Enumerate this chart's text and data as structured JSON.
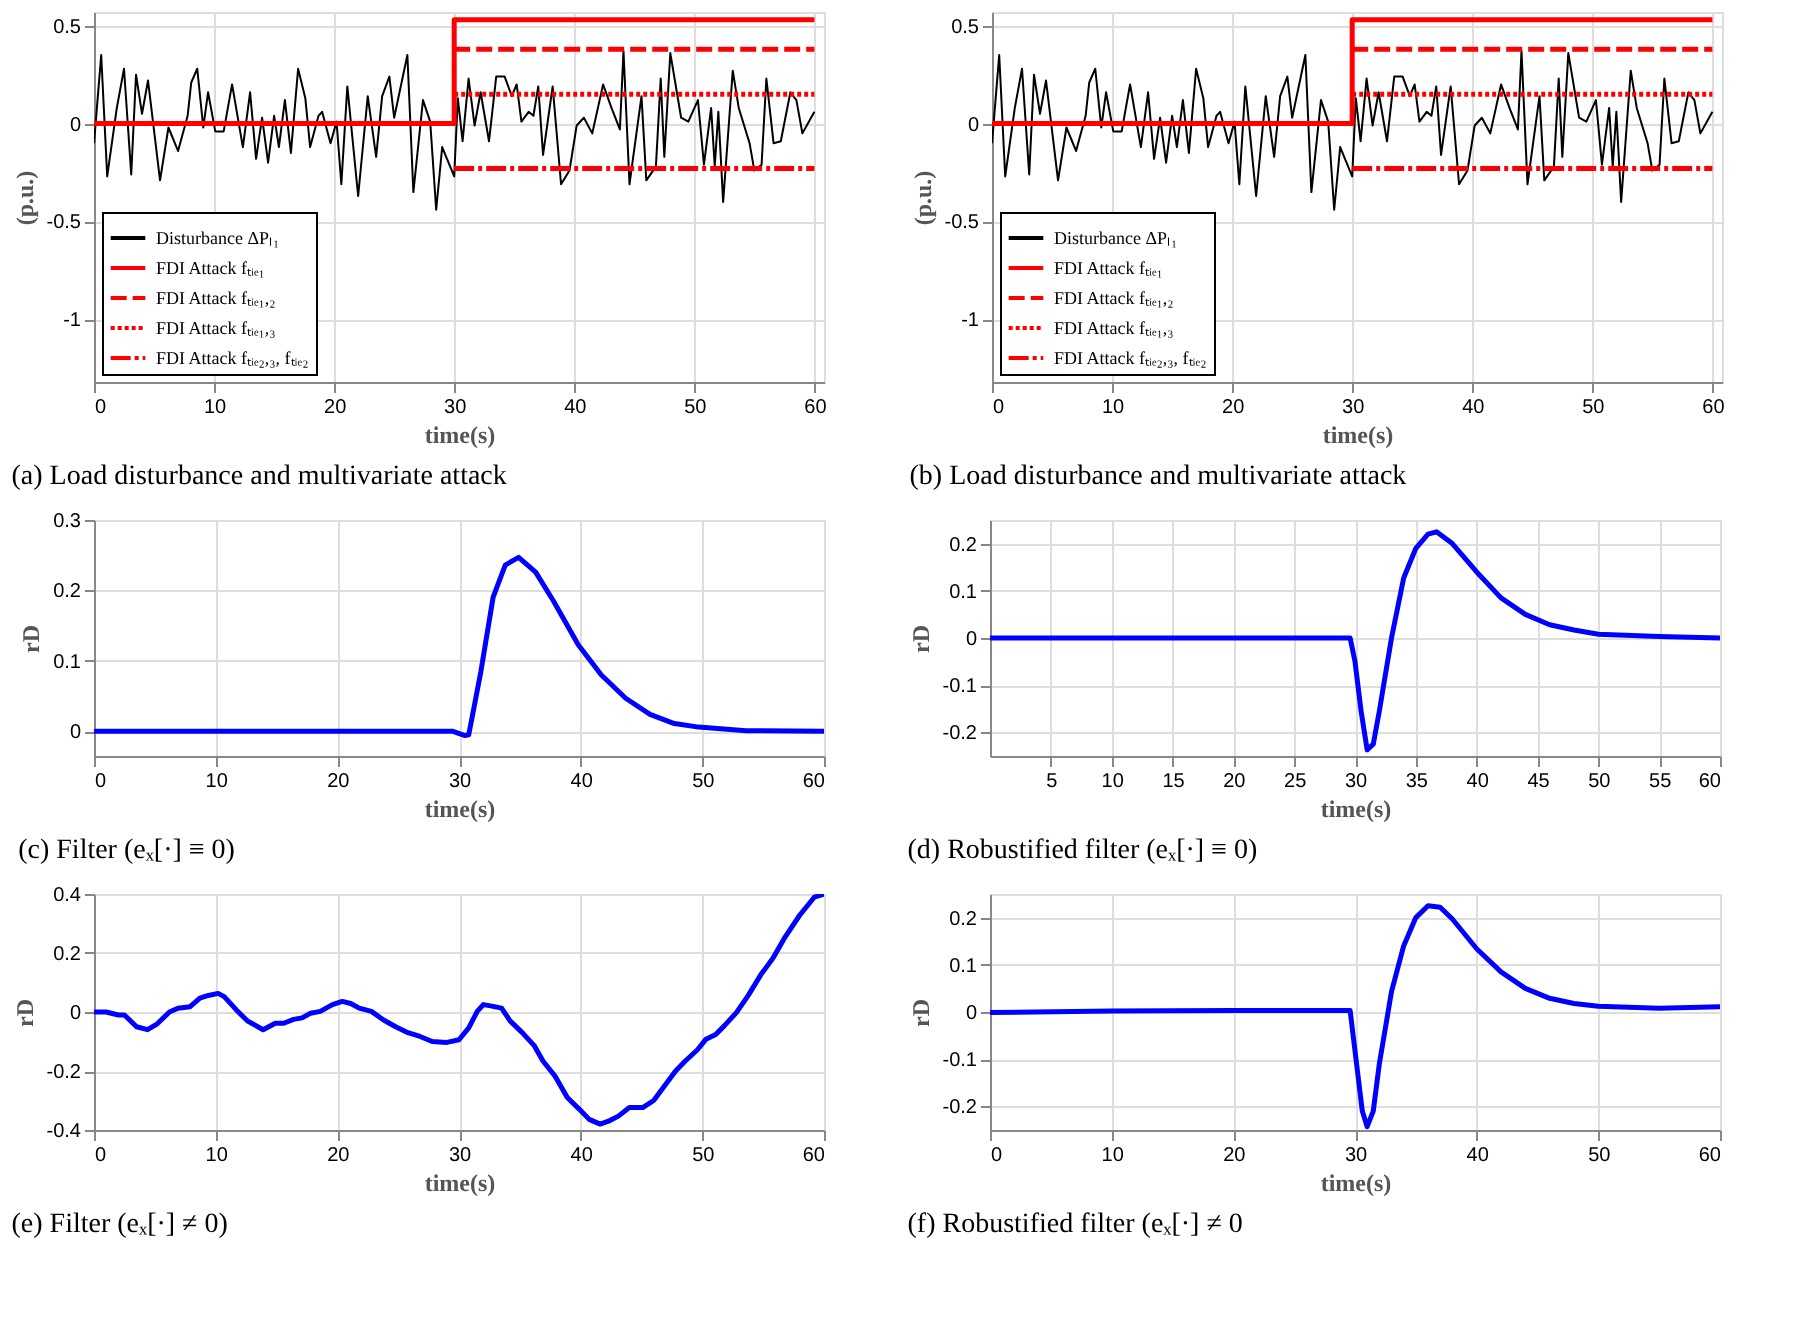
{
  "chart_data": [
    {
      "type": "line",
      "title": "(a) Load disturbance and multivariate attack",
      "xlabel": "time(s)",
      "ylabel": "(p.u.)",
      "xlim": [
        0,
        60.8
      ],
      "ylim": [
        -1.32,
        0.57
      ],
      "xticks": [
        0,
        10,
        20,
        30,
        40,
        50,
        60
      ],
      "yticks": [
        -1,
        -0.5,
        0,
        0.5
      ],
      "grid": true,
      "legend": "bottom left",
      "series": [
        {
          "name": "Disturbance ΔPₗ₁",
          "type": "line",
          "color": "#000000",
          "line_style": "solid",
          "x": [
            0,
            0.6,
            1.1,
            1.9,
            2.5,
            3.1,
            3.5,
            4,
            4.5,
            5.5,
            6.2,
            7,
            7.8,
            8.1,
            8.6,
            9.1,
            9.5,
            10.1,
            10.8,
            11.5,
            12.4,
            13,
            13.5,
            14,
            14.5,
            15,
            15.4,
            15.9,
            16.4,
            17,
            17.6,
            18,
            18.7,
            19,
            19.7,
            20.2,
            20.6,
            21.1,
            22,
            22.8,
            23.5,
            24,
            24.6,
            25,
            26.1,
            26.6,
            27.4,
            28,
            28.5,
            29,
            29.4,
            30,
            30.3,
            30.7,
            31.2,
            31.7,
            32.2,
            32.9,
            33.5,
            34.2,
            34.8,
            35.2,
            35.6,
            36.2,
            36.6,
            37,
            37.4,
            38.2,
            38.9,
            39.6,
            40.2,
            40.8,
            41.5,
            42.4,
            43.1,
            43.8,
            44.1,
            44.6,
            45.6,
            46,
            46.8,
            47.2,
            47.5,
            48,
            48.9,
            49.5,
            50.3,
            50.8,
            51.4,
            51.7,
            52,
            52.4,
            53.2,
            53.7,
            54.6,
            55,
            55.6,
            56,
            56.6,
            57.2,
            58,
            58.5,
            59,
            60
          ],
          "values": [
            -0.1,
            0.35,
            -0.27,
            0.08,
            0.28,
            -0.26,
            0.25,
            0.05,
            0.22,
            -0.29,
            -0.02,
            -0.14,
            0.04,
            0.21,
            0.28,
            -0.02,
            0.16,
            -0.04,
            -0.04,
            0.2,
            -0.12,
            0.16,
            -0.18,
            0.03,
            -0.2,
            0.04,
            -0.12,
            0.12,
            -0.15,
            0.28,
            0.13,
            -0.12,
            0.04,
            0.06,
            -0.1,
            0.01,
            -0.31,
            0.19,
            -0.37,
            0.14,
            -0.17,
            0.14,
            0.24,
            0.03,
            0.35,
            -0.35,
            0.12,
            0.01,
            -0.44,
            -0.12,
            -0.18,
            -0.27,
            0.13,
            -0.09,
            0.23,
            -0.01,
            0.16,
            -0.09,
            0.24,
            0.24,
            0.14,
            0.2,
            0.01,
            0.06,
            0.04,
            0.19,
            -0.16,
            0.19,
            -0.31,
            -0.24,
            -0.01,
            0.03,
            -0.05,
            0.2,
            0.08,
            -0.03,
            0.37,
            -0.31,
            0.14,
            -0.29,
            -0.22,
            0.23,
            -0.17,
            0.36,
            0.03,
            0.01,
            0.12,
            -0.21,
            0.08,
            -0.22,
            0.06,
            -0.4,
            0.27,
            0.08,
            -0.1,
            -0.24,
            -0.21,
            0.23,
            -0.1,
            -0.09,
            0.16,
            0.12,
            -0.05,
            0.06
          ]
        },
        {
          "name": "FDI Attack fₜᵢₑ₁",
          "type": "step",
          "color": "#ff0000",
          "line_style": "solid",
          "x": [
            0,
            30,
            60
          ],
          "values": [
            0,
            0.53,
            0.53
          ]
        },
        {
          "name": "FDI Attack fₜᵢₑ₁,₂",
          "type": "step",
          "color": "#ff0000",
          "line_style": "dashed",
          "x": [
            30,
            60
          ],
          "values": [
            0.38,
            0.38
          ]
        },
        {
          "name": "FDI Attack fₜᵢₑ₁,₃",
          "type": "step",
          "color": "#ff0000",
          "line_style": "dotted",
          "x": [
            30,
            60
          ],
          "values": [
            0.15,
            0.15
          ]
        },
        {
          "name": "FDI Attack fₜᵢₑ₂,₃, fₜᵢₑ₂",
          "type": "step",
          "color": "#ff0000",
          "line_style": "dashdot",
          "x": [
            30,
            60
          ],
          "values": [
            -0.23,
            -0.23
          ]
        }
      ]
    },
    {
      "type": "line",
      "title": "(b) Load disturbance and multivariate attack",
      "xlabel": "time(s)",
      "ylabel": "(p.u.)",
      "xlim": [
        0,
        60.8
      ],
      "ylim": [
        -1.32,
        0.57
      ],
      "xticks": [
        0,
        10,
        20,
        30,
        40,
        50,
        60
      ],
      "yticks": [
        -1,
        -0.5,
        0,
        0.5
      ],
      "grid": true,
      "legend": "bottom left",
      "series": [
        {
          "name": "Disturbance ΔPₗ₁",
          "type": "line",
          "color": "#000000",
          "line_style": "solid",
          "x": [
            0,
            0.6,
            1.1,
            1.9,
            2.5,
            3.1,
            3.5,
            4,
            4.5,
            5.5,
            6.2,
            7,
            7.8,
            8.1,
            8.6,
            9.1,
            9.5,
            10.1,
            10.8,
            11.5,
            12.4,
            13,
            13.5,
            14,
            14.5,
            15,
            15.4,
            15.9,
            16.4,
            17,
            17.6,
            18,
            18.7,
            19,
            19.7,
            20.2,
            20.6,
            21.1,
            22,
            22.8,
            23.5,
            24,
            24.6,
            25,
            26.1,
            26.6,
            27.4,
            28,
            28.5,
            29,
            29.4,
            30,
            30.3,
            30.7,
            31.2,
            31.7,
            32.2,
            32.9,
            33.5,
            34.2,
            34.8,
            35.2,
            35.6,
            36.2,
            36.6,
            37,
            37.4,
            38.2,
            38.9,
            39.6,
            40.2,
            40.8,
            41.5,
            42.4,
            43.1,
            43.8,
            44.1,
            44.6,
            45.6,
            46,
            46.8,
            47.2,
            47.5,
            48,
            48.9,
            49.5,
            50.3,
            50.8,
            51.4,
            51.7,
            52,
            52.4,
            53.2,
            53.7,
            54.6,
            55,
            55.6,
            56,
            56.6,
            57.2,
            58,
            58.5,
            59,
            60
          ],
          "values": [
            -0.1,
            0.35,
            -0.27,
            0.08,
            0.28,
            -0.26,
            0.25,
            0.05,
            0.22,
            -0.29,
            -0.02,
            -0.14,
            0.04,
            0.21,
            0.28,
            -0.02,
            0.16,
            -0.04,
            -0.04,
            0.2,
            -0.12,
            0.16,
            -0.18,
            0.03,
            -0.2,
            0.04,
            -0.12,
            0.12,
            -0.15,
            0.28,
            0.13,
            -0.12,
            0.04,
            0.06,
            -0.1,
            0.01,
            -0.31,
            0.19,
            -0.37,
            0.14,
            -0.17,
            0.14,
            0.24,
            0.03,
            0.35,
            -0.35,
            0.12,
            0.01,
            -0.44,
            -0.12,
            -0.18,
            -0.27,
            0.13,
            -0.09,
            0.23,
            -0.01,
            0.16,
            -0.09,
            0.24,
            0.24,
            0.14,
            0.2,
            0.01,
            0.06,
            0.04,
            0.19,
            -0.16,
            0.19,
            -0.31,
            -0.24,
            -0.01,
            0.03,
            -0.05,
            0.2,
            0.08,
            -0.03,
            0.37,
            -0.31,
            0.14,
            -0.29,
            -0.22,
            0.23,
            -0.17,
            0.36,
            0.03,
            0.01,
            0.12,
            -0.21,
            0.08,
            -0.22,
            0.06,
            -0.4,
            0.27,
            0.08,
            -0.1,
            -0.24,
            -0.21,
            0.23,
            -0.1,
            -0.09,
            0.16,
            0.12,
            -0.05,
            0.06
          ]
        },
        {
          "name": "FDI Attack fₜᵢₑ₁",
          "type": "step",
          "color": "#ff0000",
          "line_style": "solid",
          "x": [
            0,
            30,
            60
          ],
          "values": [
            0,
            0.53,
            0.53
          ]
        },
        {
          "name": "FDI Attack fₜᵢₑ₁,₂",
          "type": "step",
          "color": "#ff0000",
          "line_style": "dashed",
          "x": [
            30,
            60
          ],
          "values": [
            0.38,
            0.38
          ]
        },
        {
          "name": "FDI Attack fₜᵢₑ₁,₃",
          "type": "step",
          "color": "#ff0000",
          "line_style": "dotted",
          "x": [
            30,
            60
          ],
          "values": [
            0.15,
            0.15
          ]
        },
        {
          "name": "FDI Attack fₜᵢₑ₂,₃, fₜᵢₑ₂",
          "type": "step",
          "color": "#ff0000",
          "line_style": "dashdot",
          "x": [
            30,
            60
          ],
          "values": [
            -0.23,
            -0.23
          ]
        }
      ]
    },
    {
      "type": "line",
      "title": "(c) Filter (eₓ[·] ≡ 0)",
      "xlabel": "time(s)",
      "ylabel": "rD",
      "xlim": [
        0,
        60
      ],
      "ylim": [
        -0.035,
        0.3
      ],
      "xticks": [
        0,
        10,
        20,
        30,
        40,
        50,
        60
      ],
      "yticks": [
        0,
        0.1,
        0.2,
        0.3
      ],
      "grid": true,
      "x": [
        0,
        29.5,
        30.5,
        30.8,
        31.8,
        32.8,
        33.8,
        34.9,
        36.3,
        37.8,
        39.8,
        41.7,
        43.7,
        45.7,
        47.7,
        49.7,
        53.6,
        60
      ],
      "series": [
        {
          "color": "#0000ff",
          "line_style": "solid",
          "values": [
            0,
            0,
            -0.006,
            -0.005,
            0.085,
            0.19,
            0.236,
            0.247,
            0.226,
            0.184,
            0.123,
            0.08,
            0.047,
            0.024,
            0.011,
            0.006,
            0.001,
            0
          ]
        }
      ]
    },
    {
      "type": "line",
      "title": "(d) Robustified filter (eₓ[·] ≡ 0)",
      "xlabel": "time(s)",
      "ylabel": "rD",
      "xlim": [
        0,
        60
      ],
      "ylim": [
        -0.25,
        0.25
      ],
      "xticks": [
        5,
        10,
        15,
        20,
        25,
        30,
        35,
        40,
        45,
        50,
        55,
        60
      ],
      "yticks": [
        -0.2,
        -0.1,
        0,
        0.1,
        0.2
      ],
      "grid": true,
      "x": [
        0,
        29.6,
        30,
        30.5,
        31,
        31.5,
        32,
        33,
        34,
        35,
        36,
        36.7,
        38,
        40,
        42,
        44,
        46,
        48,
        50,
        55,
        60
      ],
      "series": [
        {
          "color": "#0000ff",
          "line_style": "solid",
          "values": [
            0,
            0,
            -0.05,
            -0.155,
            -0.237,
            -0.225,
            -0.155,
            0,
            0.127,
            0.19,
            0.22,
            0.225,
            0.2,
            0.14,
            0.085,
            0.05,
            0.028,
            0.017,
            0.008,
            0.003,
            0
          ]
        }
      ]
    },
    {
      "type": "line",
      "title": "(e) Filter (eₓ[·] ≠ 0)",
      "xlabel": "time(s)",
      "ylabel": "rD",
      "xlim": [
        0,
        60
      ],
      "ylim": [
        -0.4,
        0.4
      ],
      "xticks": [
        0,
        10,
        20,
        30,
        40,
        50,
        60
      ],
      "yticks": [
        -0.4,
        -0.2,
        0,
        0.2,
        0.4
      ],
      "grid": true,
      "x": [
        0,
        1,
        2,
        2.5,
        3.5,
        4.4,
        5.2,
        6.2,
        6.9,
        7.9,
        8.7,
        9.4,
        10.2,
        10.7,
        11.7,
        12.6,
        13.9,
        14.9,
        15.6,
        16.4,
        17.1,
        17.8,
        18.6,
        19.6,
        20.4,
        21.1,
        21.8,
        22.8,
        23.8,
        24.8,
        25.8,
        26.8,
        27.8,
        29,
        30,
        30.8,
        31.5,
        32,
        32.7,
        33.5,
        34.2,
        35.2,
        36.2,
        36.9,
        37.9,
        38.9,
        39.9,
        40.7,
        41.6,
        42.4,
        43.1,
        44,
        45.1,
        46,
        46.9,
        47.8,
        48.6,
        49.6,
        50.3,
        51.1,
        51.8,
        52.8,
        53.8,
        54.8,
        55.8,
        56.8,
        58,
        59.2,
        60
      ],
      "series": [
        {
          "color": "#0000ff",
          "line_style": "solid",
          "values": [
            0,
            0,
            -0.01,
            -0.01,
            -0.05,
            -0.06,
            -0.04,
            0,
            0.013,
            0.018,
            0.047,
            0.056,
            0.063,
            0.052,
            0.007,
            -0.03,
            -0.06,
            -0.038,
            -0.038,
            -0.025,
            -0.02,
            -0.004,
            0.002,
            0.025,
            0.036,
            0.029,
            0.013,
            0.002,
            -0.027,
            -0.05,
            -0.07,
            -0.083,
            -0.1,
            -0.103,
            -0.094,
            -0.054,
            0.002,
            0.025,
            0.02,
            0.013,
            -0.03,
            -0.07,
            -0.115,
            -0.166,
            -0.218,
            -0.29,
            -0.33,
            -0.364,
            -0.38,
            -0.368,
            -0.353,
            -0.324,
            -0.324,
            -0.3,
            -0.25,
            -0.2,
            -0.166,
            -0.128,
            -0.092,
            -0.076,
            -0.047,
            -0.002,
            0.058,
            0.126,
            0.182,
            0.254,
            0.328,
            0.389,
            0.4
          ]
        }
      ]
    },
    {
      "type": "line",
      "title": "(f) Robustified filter (eₓ[·] ≠ 0",
      "xlabel": "time(s)",
      "ylabel": "rD",
      "xlim": [
        0,
        60
      ],
      "ylim": [
        -0.25,
        0.25
      ],
      "xticks": [
        0,
        10,
        20,
        30,
        40,
        50,
        60
      ],
      "yticks": [
        -0.2,
        -0.1,
        0,
        0.1,
        0.2
      ],
      "grid": true,
      "x": [
        0,
        10,
        20,
        29.6,
        30.2,
        30.6,
        31,
        31.5,
        32,
        33,
        34,
        35,
        36,
        37,
        38,
        40,
        42,
        44,
        46,
        48,
        50,
        55,
        60
      ],
      "series": [
        {
          "color": "#0000ff",
          "line_style": "solid",
          "values": [
            -0.001,
            0.002,
            0.003,
            0.003,
            -0.125,
            -0.21,
            -0.243,
            -0.21,
            -0.11,
            0.043,
            0.14,
            0.2,
            0.225,
            0.222,
            0.197,
            0.134,
            0.085,
            0.05,
            0.029,
            0.018,
            0.012,
            0.008,
            0.011
          ]
        }
      ]
    }
  ]
}
